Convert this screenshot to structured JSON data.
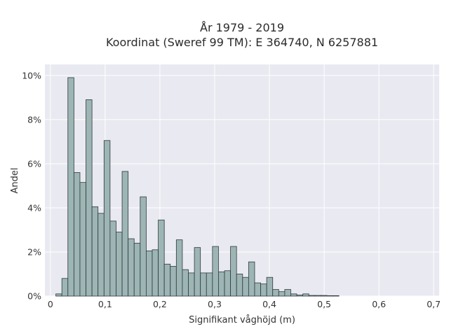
{
  "chart_data": {
    "type": "bar",
    "title": "År 1979 - 2019",
    "subtitle": "Koordinat (Sweref 99 TM): E 364740, N 6257881",
    "xlabel": "Signifikant våghöjd (m)",
    "ylabel": "Andel",
    "xlim": [
      -0.01,
      0.71
    ],
    "ylim": [
      0,
      10.5
    ],
    "x_ticks": [
      0,
      0.1,
      0.2,
      0.3,
      0.4,
      0.5,
      0.6,
      0.7
    ],
    "x_tick_labels": [
      "0",
      "0,1",
      "0,2",
      "0,3",
      "0,4",
      "0,5",
      "0,6",
      "0,7"
    ],
    "y_ticks": [
      0,
      2,
      4,
      6,
      8,
      10
    ],
    "y_tick_labels": [
      "0%",
      "2%",
      "4%",
      "6%",
      "8%",
      "10%"
    ],
    "bin_width": 0.011,
    "bin_start": 0.01,
    "values": [
      0.1,
      0.8,
      9.9,
      5.6,
      5.15,
      8.9,
      4.05,
      3.75,
      7.05,
      3.4,
      2.9,
      5.65,
      2.6,
      2.4,
      4.5,
      2.05,
      2.1,
      3.45,
      1.45,
      1.35,
      2.55,
      1.2,
      1.05,
      2.2,
      1.05,
      1.05,
      2.25,
      1.1,
      1.15,
      2.25,
      1.0,
      0.85,
      1.55,
      0.6,
      0.55,
      0.85,
      0.3,
      0.2,
      0.3,
      0.1,
      0.05,
      0.1,
      0.03,
      0.03,
      0.03,
      0.02,
      0.02
    ],
    "grid": true,
    "colors": {
      "bar_fill": "#9db5b5",
      "bar_edge": "#2f3a3a",
      "plot_background": "#e9e9f1",
      "grid": "#ffffff"
    }
  }
}
